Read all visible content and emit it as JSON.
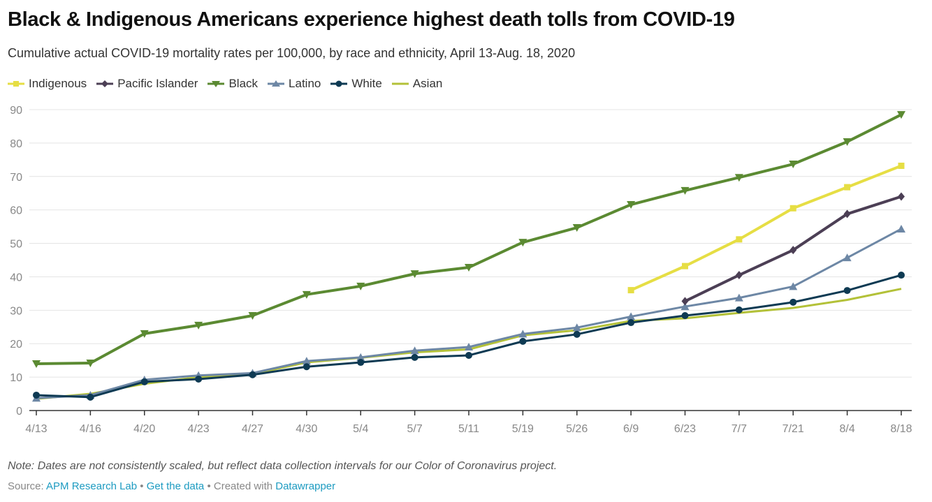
{
  "chart_data": {
    "type": "line",
    "title": "Black & Indigenous Americans experience highest death tolls from COVID-19",
    "subtitle": "Cumulative actual COVID-19 mortality rates per 100,000, by race and ethnicity, April 13-Aug. 18, 2020",
    "xlabel": "",
    "ylabel": "",
    "ylim": [
      0,
      90
    ],
    "yticks": [
      0,
      10,
      20,
      30,
      40,
      50,
      60,
      70,
      80,
      90
    ],
    "grid": true,
    "legend_position": "top-left",
    "categories": [
      "4/13",
      "4/16",
      "4/20",
      "4/23",
      "4/27",
      "4/30",
      "5/4",
      "5/7",
      "5/11",
      "5/19",
      "5/26",
      "6/9",
      "6/23",
      "7/7",
      "7/21",
      "8/4",
      "8/18"
    ],
    "series": [
      {
        "name": "Indigenous",
        "color": "#e6de44",
        "marker": "square",
        "width": 4,
        "values": [
          null,
          null,
          null,
          null,
          null,
          null,
          null,
          null,
          null,
          null,
          null,
          36.0,
          43.2,
          51.2,
          60.5,
          66.8,
          73.2
        ]
      },
      {
        "name": "Pacific Islander",
        "color": "#4c3f55",
        "marker": "diamond",
        "width": 4,
        "values": [
          null,
          null,
          null,
          null,
          null,
          null,
          null,
          null,
          null,
          null,
          null,
          null,
          32.7,
          40.5,
          48.0,
          58.8,
          64.0
        ]
      },
      {
        "name": "Black",
        "color": "#5b8a32",
        "marker": "triangle-down",
        "width": 4,
        "values": [
          14.0,
          14.2,
          23.0,
          25.5,
          28.4,
          34.7,
          37.2,
          40.9,
          42.8,
          50.3,
          54.7,
          61.6,
          65.8,
          69.7,
          73.7,
          80.4,
          88.5
        ]
      },
      {
        "name": "Latino",
        "color": "#6d87a5",
        "marker": "triangle-up",
        "width": 3,
        "values": [
          3.7,
          4.6,
          9.2,
          10.5,
          11.2,
          14.8,
          15.9,
          17.9,
          19.0,
          22.9,
          24.8,
          28.1,
          31.1,
          33.7,
          37.1,
          45.7,
          54.3
        ]
      },
      {
        "name": "White",
        "color": "#0e3a53",
        "marker": "circle",
        "width": 3,
        "values": [
          4.6,
          4.0,
          8.6,
          9.4,
          10.7,
          13.1,
          14.4,
          15.9,
          16.5,
          20.7,
          22.8,
          26.3,
          28.4,
          30.1,
          32.4,
          35.9,
          40.5
        ]
      },
      {
        "name": "Asian",
        "color": "#b3c138",
        "marker": "none",
        "width": 3,
        "values": [
          3.5,
          5.0,
          8.0,
          10.0,
          10.9,
          14.4,
          15.8,
          17.4,
          18.3,
          22.5,
          24.0,
          26.8,
          27.6,
          29.2,
          30.7,
          33.1,
          36.4
        ]
      }
    ]
  },
  "footer": {
    "note": "Note: Dates are not consistently scaled, but reflect data collection intervals for our Color of Coronavirus project.",
    "source_label": "Source: ",
    "source_link": "APM Research Lab",
    "separator": " • ",
    "get_data_link": "Get the data",
    "created_with": "Created with ",
    "datawrapper_link": "Datawrapper"
  }
}
